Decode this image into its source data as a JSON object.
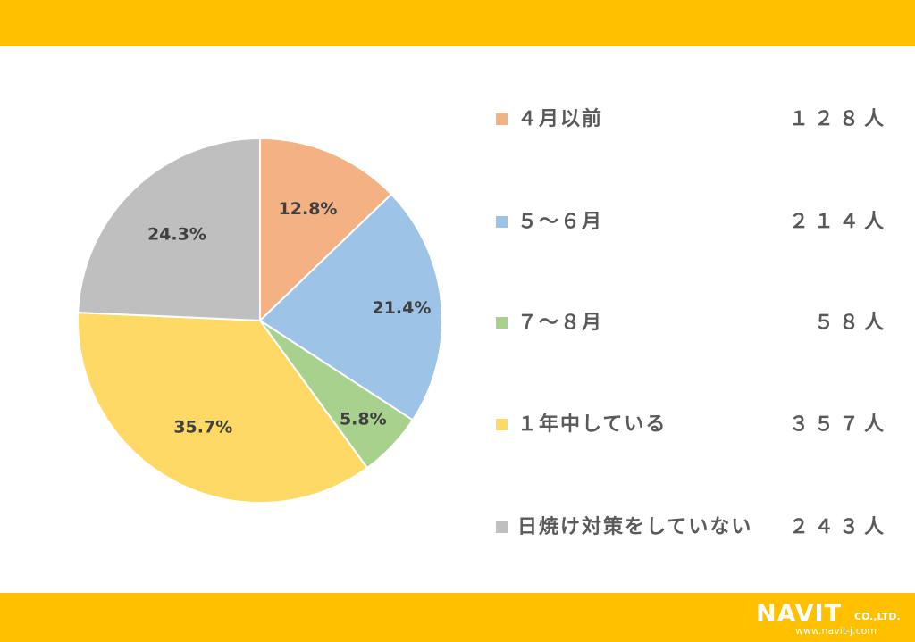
{
  "chart_data": {
    "type": "pie",
    "title": "",
    "start_angle_deg": 0,
    "direction": "clockwise",
    "slices": [
      {
        "label": "４月以前",
        "count_label": "１２８人",
        "value": 128,
        "percent_label": "12.8%",
        "color": "#F4B183"
      },
      {
        "label": "５～６月",
        "count_label": "２１４人",
        "value": 214,
        "percent_label": "21.4%",
        "color": "#9DC3E6"
      },
      {
        "label": "７～８月",
        "count_label": "５８人",
        "value": 58,
        "percent_label": "5.8%",
        "color": "#A9D18E"
      },
      {
        "label": "１年中している",
        "count_label": "３５７人",
        "value": 357,
        "percent_label": "35.7%",
        "color": "#FFD966"
      },
      {
        "label": "日焼け対策をしていない",
        "count_label": "２４３人",
        "value": 243,
        "percent_label": "24.3%",
        "color": "#BFBFBF"
      }
    ],
    "legend_position": "right"
  },
  "colors": {
    "band": "#FFC000",
    "text": "#595959",
    "slice_label_text": "#404040",
    "slice_border": "#ffffff"
  },
  "logo": {
    "name": "NAVIT",
    "suffix": "CO.,LTD.",
    "url": "www.navit-j.com"
  }
}
